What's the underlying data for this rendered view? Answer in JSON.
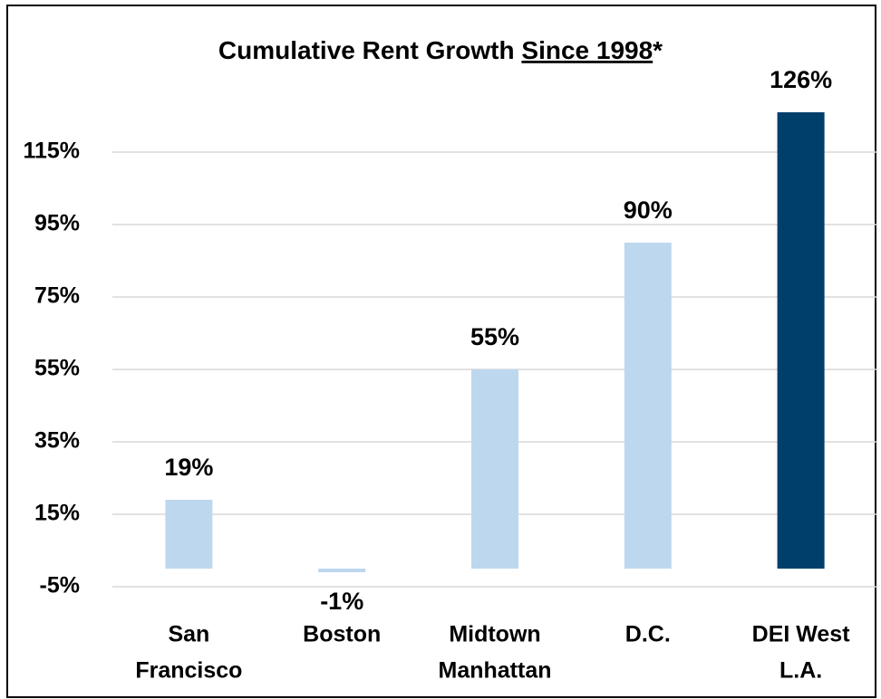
{
  "chart_data": {
    "type": "bar",
    "title": "Cumulative Rent Growth ",
    "title_underlined": "Since 1998",
    "title_suffix": "*",
    "categories": [
      [
        "San",
        "Francisco"
      ],
      [
        "Boston"
      ],
      [
        "Midtown",
        "Manhattan"
      ],
      [
        "D.C."
      ],
      [
        "DEI West",
        "L.A."
      ]
    ],
    "values": [
      19,
      -1,
      55,
      90,
      126
    ],
    "value_labels": [
      "19%",
      "-1%",
      "55%",
      "90%",
      "126%"
    ],
    "colors": [
      "#bdd7ee",
      "#bdd7ee",
      "#bdd7ee",
      "#bdd7ee",
      "#003f6c"
    ],
    "ylim": [
      -5,
      130
    ],
    "yticks": [
      {
        "value": -5,
        "label": "-5%"
      },
      {
        "value": 15,
        "label": "15%"
      },
      {
        "value": 35,
        "label": "35%"
      },
      {
        "value": 55,
        "label": "55%"
      },
      {
        "value": 75,
        "label": "75%"
      },
      {
        "value": 95,
        "label": "95%"
      },
      {
        "value": 115,
        "label": "115%"
      }
    ],
    "grid": true
  }
}
